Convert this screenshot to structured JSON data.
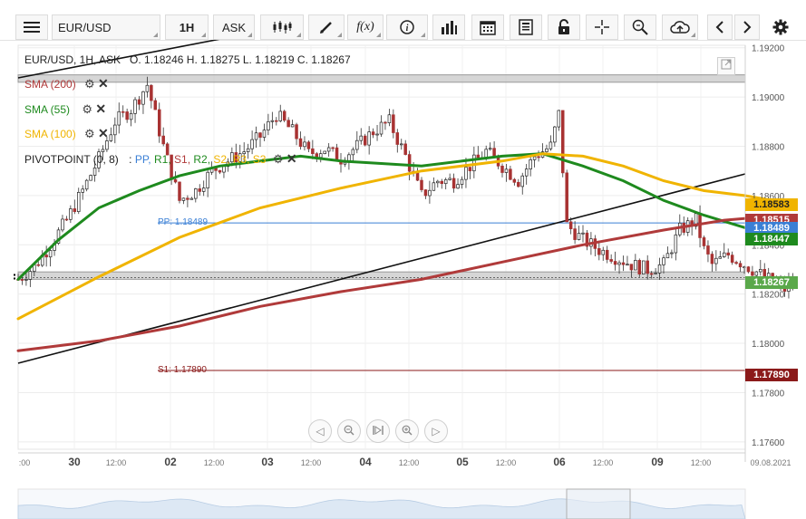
{
  "toolbar": {
    "symbol": "EUR/USD",
    "timeframe": "1H",
    "price_type": "ASK"
  },
  "header": {
    "instrument_line": "EUR/USD, 1H, ASK",
    "open": "O. 1.18246",
    "high": "H. 1.18275",
    "low": "L. 1.18219",
    "close": "C. 1.18267"
  },
  "indicators": {
    "sma200": {
      "label": "SMA (200)",
      "color": "#b03a3a"
    },
    "sma55": {
      "label": "SMA (55)",
      "color": "#1e8a1e"
    },
    "sma100": {
      "label": "SMA (100)",
      "color": "#f0b400"
    },
    "pivot": {
      "label": "PIVOTPOINT (0, 8)",
      "sep": ":",
      "pp": "PP,",
      "r1": "R1,",
      "s1": "S1,",
      "r2": "R2,",
      "s2": "S2,",
      "r3": "R3,",
      "s3": "S3"
    }
  },
  "pivot_levels": {
    "pp_label": "PP: 1.18489",
    "s1_label": "S1: 1.17890"
  },
  "price_tags": [
    {
      "value": "1.18583",
      "color": "#f0b400",
      "text_color": "#222222"
    },
    {
      "value": "1.18515",
      "color": "#b03a3a",
      "text_color": "#ffffff"
    },
    {
      "value": "1.18489",
      "color": "#3a7fd5",
      "text_color": "#ffffff"
    },
    {
      "value": "1.18447",
      "color": "#1e8a1e",
      "text_color": "#ffffff"
    },
    {
      "value": "1.18267",
      "color": "#5aa84a",
      "text_color": "#ffffff"
    },
    {
      "value": "1.17890",
      "color": "#8b1a1a",
      "text_color": "#ffffff"
    }
  ],
  "chart_data": {
    "type": "candlestick",
    "y_ticks": [
      "1.19200",
      "1.19000",
      "1.18800",
      "1.18600",
      "1.18400",
      "1.18200",
      "1.18000",
      "1.17800",
      "1.17600"
    ],
    "ylim": [
      1.1757,
      1.1921
    ],
    "x_ticks": [
      {
        "label": ":00",
        "bold": false
      },
      {
        "label": "30",
        "bold": true
      },
      {
        "label": "12:00",
        "bold": false
      },
      {
        "label": "02",
        "bold": true
      },
      {
        "label": "12:00",
        "bold": false
      },
      {
        "label": "03",
        "bold": true
      },
      {
        "label": "12:00",
        "bold": false
      },
      {
        "label": "04",
        "bold": true
      },
      {
        "label": "12:00",
        "bold": false
      },
      {
        "label": "05",
        "bold": true
      },
      {
        "label": "12:00",
        "bold": false
      },
      {
        "label": "06",
        "bold": true
      },
      {
        "label": "12:00",
        "bold": false
      },
      {
        "label": "09",
        "bold": true
      },
      {
        "label": "12:00",
        "bold": false
      },
      {
        "label": "09.08.2021",
        "bold": false
      }
    ],
    "pivot_pp": 1.18489,
    "pivot_s1": 1.1789,
    "last_close": 1.18267,
    "sma200_last": 1.18515,
    "sma100_last": 1.18583,
    "sma55_last": 1.18447,
    "resistance_zone": [
      1.1906,
      1.1909
    ],
    "support_zone": [
      1.1826,
      1.1829
    ]
  }
}
